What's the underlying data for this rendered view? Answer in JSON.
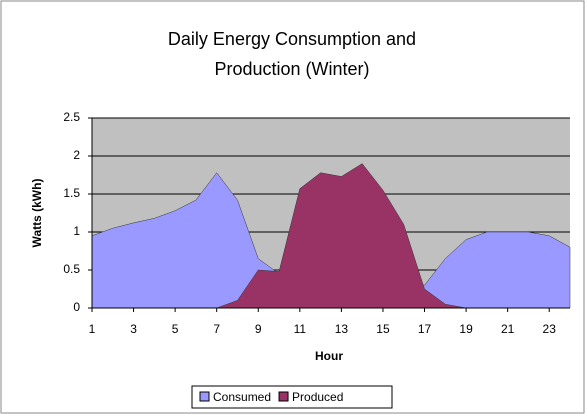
{
  "chart_data": {
    "type": "area",
    "title": "Daily Energy Consumption and Production (Winter)",
    "title_lines": [
      "Daily Energy Consumption and",
      "Production (Winter)"
    ],
    "x_label": "Hour",
    "y_label": "Watts (kWh)",
    "x": [
      1,
      2,
      3,
      4,
      5,
      6,
      7,
      8,
      9,
      10,
      11,
      12,
      13,
      14,
      15,
      16,
      17,
      18,
      19,
      20,
      21,
      22,
      23,
      24
    ],
    "xlim": [
      1,
      24
    ],
    "xticks": [
      1,
      3,
      5,
      7,
      9,
      11,
      13,
      15,
      17,
      19,
      21,
      23
    ],
    "ylim": [
      0,
      2.5
    ],
    "yticks": [
      0,
      0.5,
      1,
      1.5,
      2,
      2.5
    ],
    "grid": true,
    "legend": "bottom",
    "series": [
      {
        "name": "Consumed",
        "color": "#9999ff",
        "values": [
          0.95,
          1.05,
          1.12,
          1.18,
          1.28,
          1.42,
          1.78,
          1.42,
          0.65,
          0.45,
          0.42,
          0.4,
          0.4,
          0.4,
          0.4,
          0.38,
          0.3,
          0.65,
          0.9,
          1.0,
          1.0,
          1.0,
          0.95,
          0.8
        ]
      },
      {
        "name": "Produced",
        "color": "#993366",
        "values": [
          0,
          0,
          0,
          0,
          0,
          0,
          0,
          0.1,
          0.5,
          0.48,
          1.57,
          1.78,
          1.73,
          1.9,
          1.55,
          1.1,
          0.25,
          0.05,
          0,
          0,
          0,
          0,
          0,
          0
        ]
      }
    ]
  }
}
